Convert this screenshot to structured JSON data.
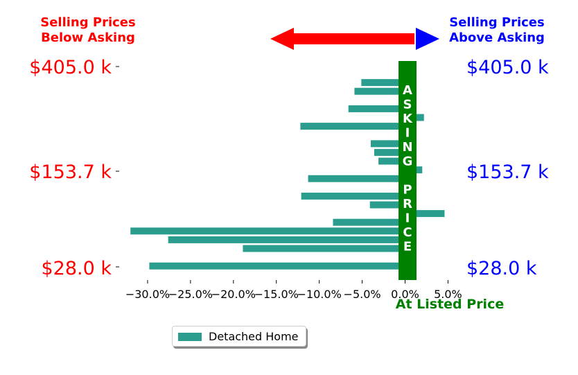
{
  "chart_data": {
    "type": "bar",
    "orientation": "horizontal",
    "header_left": [
      "Selling Prices",
      "Below Asking"
    ],
    "header_right": [
      "Selling Prices",
      "Above Asking"
    ],
    "center_label": "At Listed Price",
    "asking_price_letters": [
      "A",
      "S",
      "K",
      "I",
      "N",
      "G",
      "",
      "P",
      "R",
      "I",
      "C",
      "E"
    ],
    "y_ticks": [
      "$405.0 k",
      "$153.7 k",
      "$28.0 k"
    ],
    "x_ticks": [
      "−30.0%",
      "−25.0%",
      "−20.0%",
      "−15.0%",
      "−10.0%",
      "−5.0%",
      "0.0%",
      "5.0%"
    ],
    "xlim": [
      -32.5,
      6.5
    ],
    "series": [
      {
        "name": "Detached Home",
        "values": [
          1.2,
          -5.1,
          -5.9,
          0.4,
          -6.6,
          2.2,
          -12.2,
          0.3,
          -4.0,
          -3.6,
          -3.1,
          2.0,
          -11.3,
          0.2,
          -12.1,
          -4.1,
          4.6,
          -8.4,
          -32.0,
          -27.6,
          -18.9,
          0.1,
          -29.8
        ]
      }
    ],
    "legend_position": "bottom-center",
    "colors": {
      "bar": "#2a9d8f",
      "asking_band": "#008000",
      "below_text": "#ff0000",
      "above_text": "#0000ff",
      "left_arrow": "#ff0000",
      "right_arrow": "#0000ff",
      "listed_price_text": "#008000"
    }
  }
}
